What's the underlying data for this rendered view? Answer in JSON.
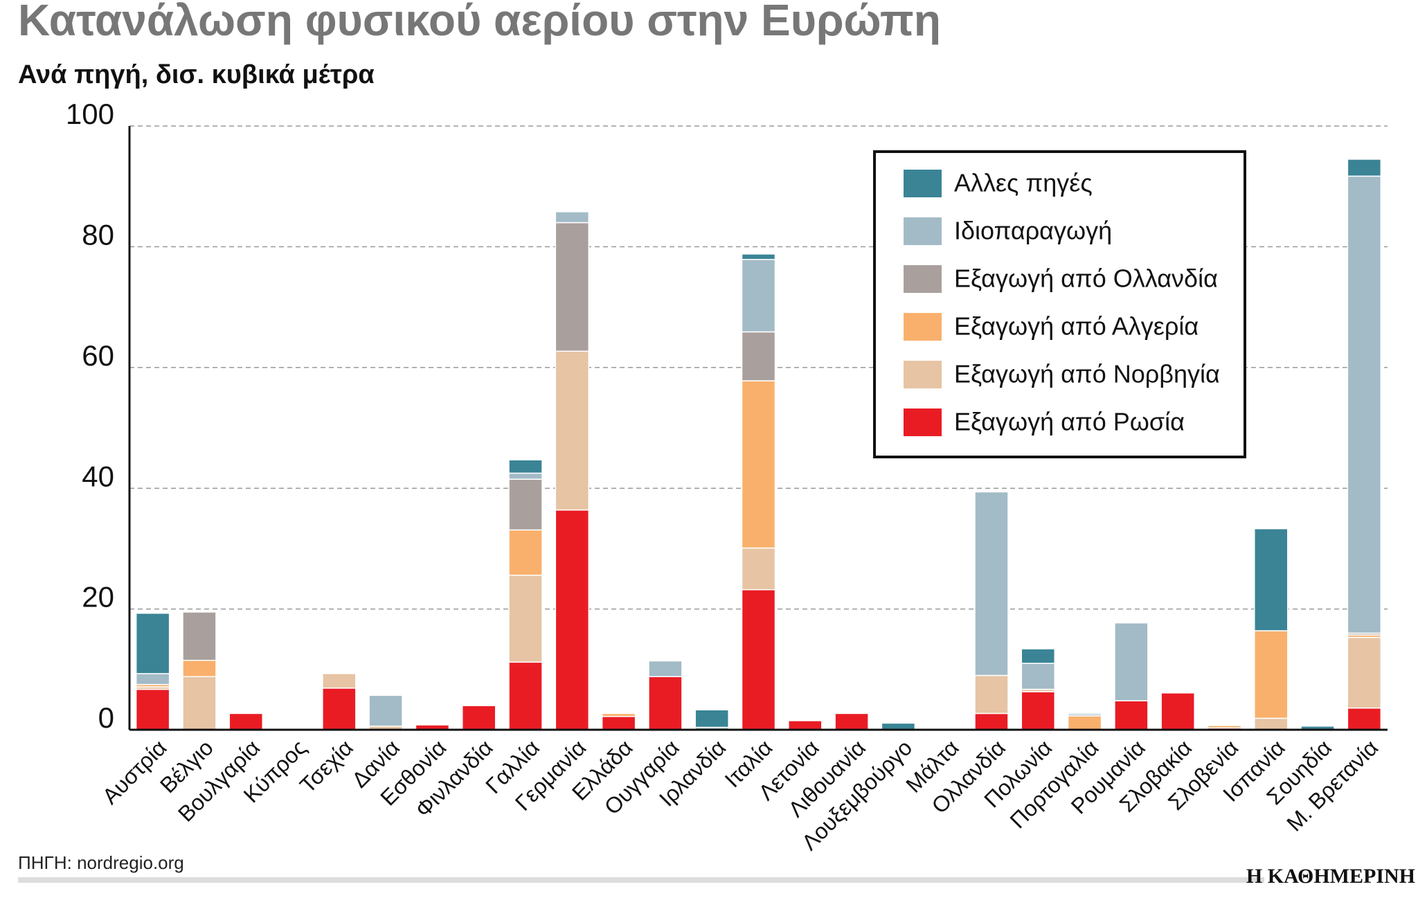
{
  "chart_data": {
    "type": "stacked-bar",
    "title": "Κατανάλωση φυσικού αερίου στην Ευρώπη",
    "subtitle": "Ανά πηγή, δισ. κυβικά μέτρα",
    "source": "ΠΗΓΗ: nordregio.org",
    "logo": "Η ΚΑΘΗΜΕΡΙΝΗ",
    "categories": [
      "Αυστρία",
      "Βέλγιο",
      "Βουλγαρία",
      "Κύπρος",
      "Τσεχία",
      "Δανία",
      "Εσθονία",
      "Φινλανδία",
      "Γαλλία",
      "Γερμανία",
      "Ελλάδα",
      "Ουγγαρία",
      "Ιρλανδία",
      "Ιταλία",
      "Λετονία",
      "Λιθουανία",
      "Λουξεμβούργο",
      "Μάλτα",
      "Ολλανδία",
      "Πολωνία",
      "Πορτογαλία",
      "Ρουμανία",
      "Σλοβακία",
      "Σλοβενία",
      "Ισπανία",
      "Σουηδία",
      "Μ. Βρετανία"
    ],
    "series": [
      {
        "name": "Εξαγωγή από Ρωσία",
        "color": "#e91c24",
        "values": [
          6.7,
          0,
          2.7,
          0,
          6.9,
          0,
          0.8,
          4.0,
          11.2,
          36.4,
          2.2,
          8.8,
          0,
          23.2,
          1.5,
          2.7,
          0,
          0,
          2.7,
          6.3,
          0,
          4.8,
          6.1,
          0.3,
          0,
          0,
          3.6
        ]
      },
      {
        "name": "Εξαγωγή από Νορβηγία",
        "color": "#e6c4a4",
        "values": [
          0.4,
          8.8,
          0,
          0,
          2.4,
          0.6,
          0,
          0,
          14.4,
          26.3,
          0,
          0,
          0,
          6.9,
          0,
          0,
          0,
          0,
          6.3,
          0.4,
          0,
          0,
          0,
          0,
          1.9,
          0,
          11.7
        ]
      },
      {
        "name": "Εξαγωγή από Αλγερία",
        "color": "#f9b06c",
        "values": [
          0.4,
          2.7,
          0,
          0,
          0,
          0,
          0,
          0,
          7.5,
          0,
          0.5,
          0,
          0,
          27.7,
          0,
          0,
          0,
          0,
          0,
          0,
          2.3,
          0,
          0,
          0.4,
          14.5,
          0,
          0.4
        ]
      },
      {
        "name": "Εξαγωγή από Ολλανδία",
        "color": "#a9a09d",
        "values": [
          0,
          8.0,
          0,
          0,
          0,
          0,
          0,
          0,
          8.4,
          21.3,
          0,
          0,
          0,
          8.1,
          0,
          0,
          0,
          0,
          0,
          0,
          0,
          0,
          0,
          0,
          0,
          0,
          0.3
        ]
      },
      {
        "name": "Ιδιοπαραγωγή",
        "color": "#a3bbc7",
        "values": [
          1.8,
          0,
          0,
          0,
          0,
          5.1,
          0,
          0,
          1.0,
          1.8,
          0,
          2.6,
          0.4,
          12.0,
          0,
          0,
          0,
          0,
          30.4,
          4.3,
          0.3,
          12.9,
          0,
          0,
          0,
          0,
          75.7
        ]
      },
      {
        "name": "Αλλες πηγές",
        "color": "#3a8496",
        "values": [
          10.0,
          0,
          0,
          0,
          0,
          0,
          0,
          0,
          2.2,
          0,
          0,
          0,
          2.9,
          0.9,
          0,
          0,
          1.1,
          0,
          0,
          2.4,
          0.2,
          0,
          0,
          0,
          16.9,
          0.6,
          2.8
        ]
      }
    ],
    "ylim": [
      0,
      100
    ],
    "yticks": [
      0,
      20,
      40,
      60,
      80,
      100
    ],
    "grid": true,
    "legend": "upper right"
  }
}
